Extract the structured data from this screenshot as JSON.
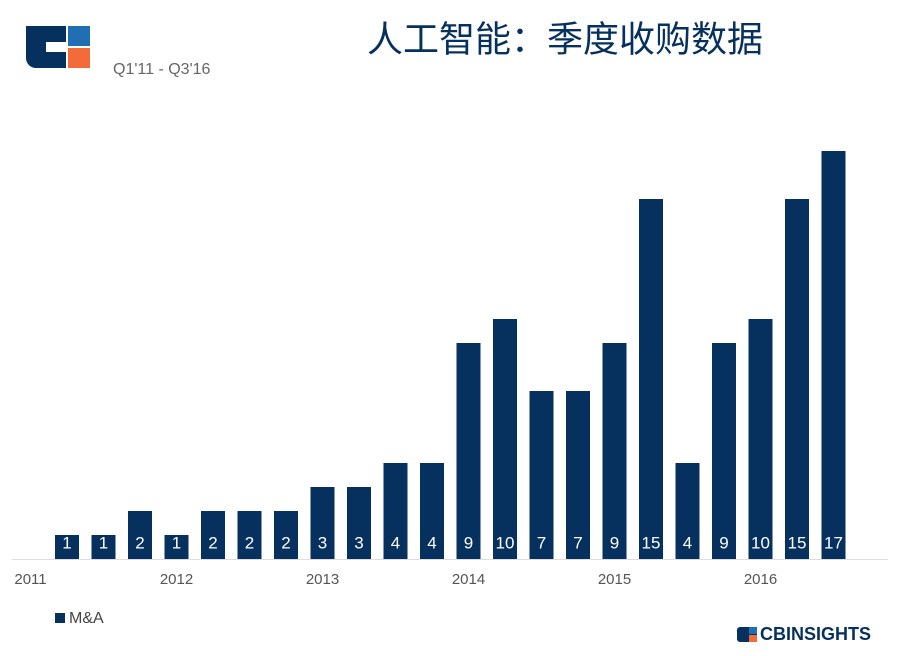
{
  "chart_data": {
    "type": "bar",
    "title": "人工智能：季度收购数据",
    "subtitle": "Q1'11 - Q3'16",
    "brand": "CBINSIGHTS",
    "categories": [
      "2011",
      null,
      null,
      null,
      "2012",
      null,
      null,
      null,
      "2013",
      null,
      null,
      null,
      "2014",
      null,
      null,
      null,
      "2015",
      null,
      null,
      null,
      "2016",
      null,
      null
    ],
    "series": [
      {
        "name": "M&A",
        "color": "#06305e",
        "values": [
          null,
          1,
          1,
          2,
          1,
          2,
          2,
          2,
          3,
          3,
          4,
          4,
          9,
          10,
          7,
          7,
          9,
          15,
          4,
          9,
          10,
          15,
          17
        ]
      }
    ],
    "ylim": [
      0,
      17
    ]
  }
}
